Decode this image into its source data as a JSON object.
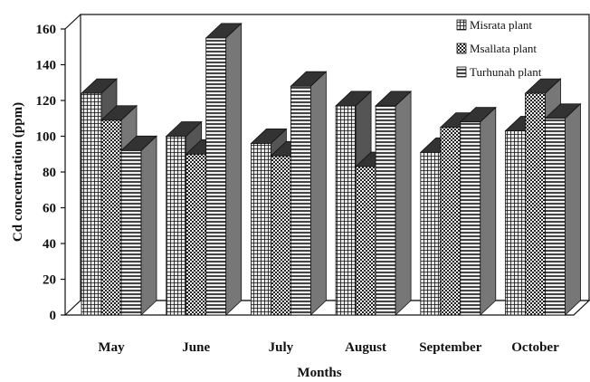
{
  "chart_data": {
    "type": "bar",
    "title": "",
    "xlabel": "Months",
    "ylabel": "Cd concentration (ppm)",
    "ylim": [
      0,
      160
    ],
    "yticks": [
      0,
      20,
      40,
      60,
      80,
      100,
      120,
      140,
      160
    ],
    "categories": [
      "May",
      "June",
      "July",
      "August",
      "September",
      "October"
    ],
    "series": [
      {
        "name": "Misrata plant",
        "values": [
          124,
          100,
          96,
          117,
          91,
          103
        ]
      },
      {
        "name": "Msallata plant",
        "values": [
          109,
          90,
          89,
          83,
          105,
          124
        ]
      },
      {
        "name": "Turhunah plant",
        "values": [
          92,
          155,
          128,
          117,
          108,
          110
        ]
      }
    ],
    "legend_position": "top-right",
    "style": "3d-bars",
    "grid": false
  }
}
